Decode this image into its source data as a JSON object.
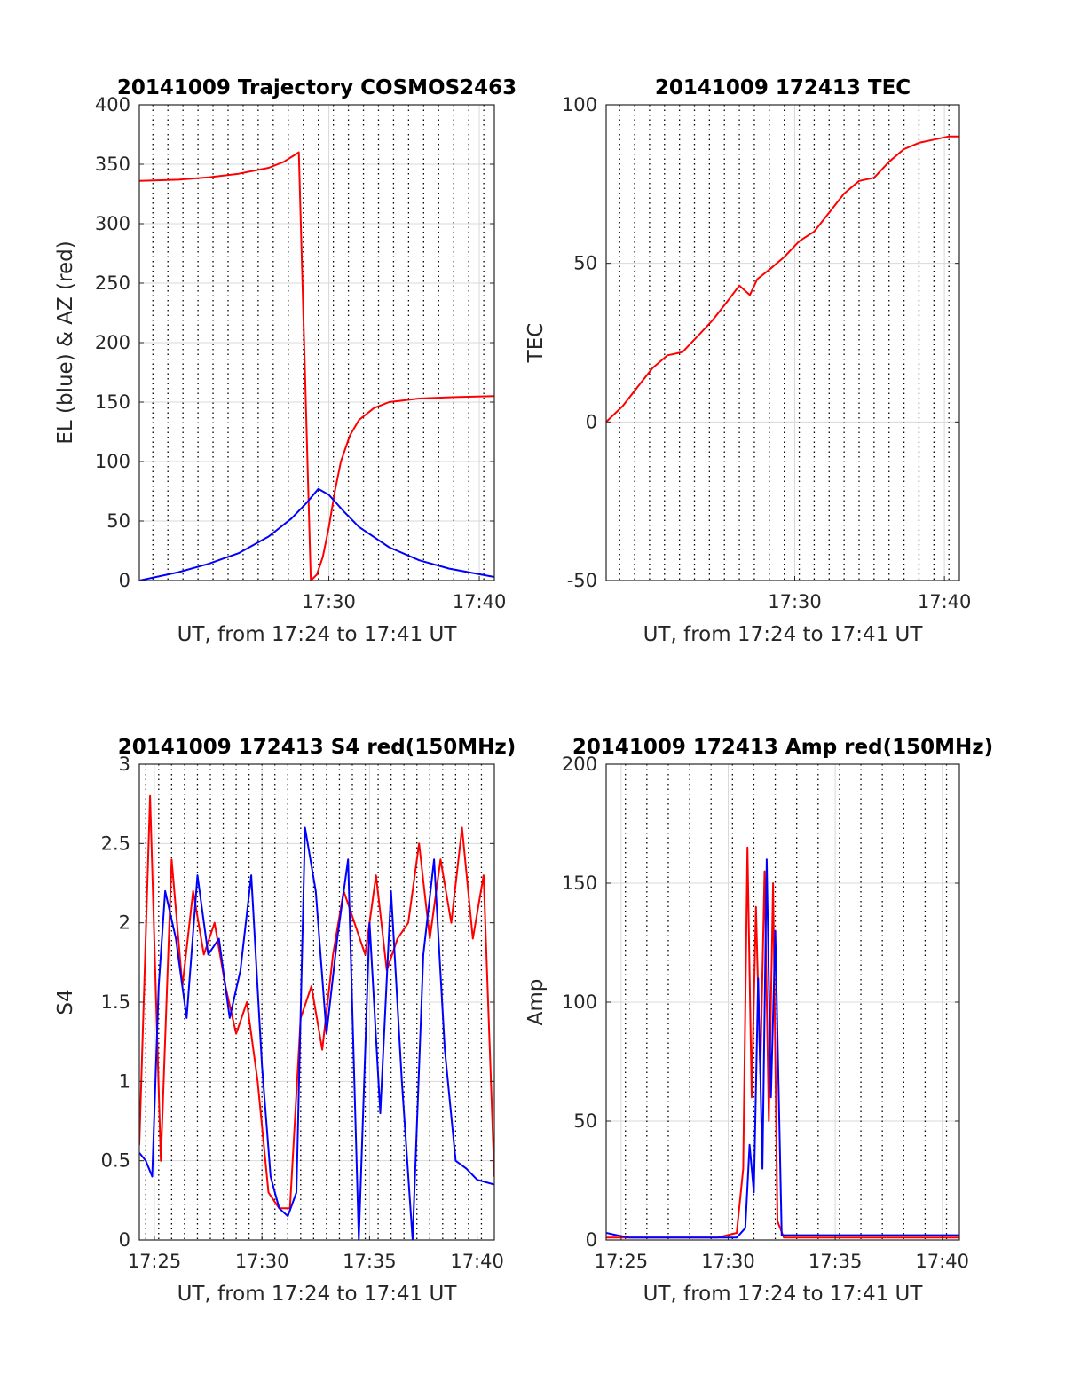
{
  "colors": {
    "el": "#0000ff",
    "az": "#ff0000",
    "grid": "#d9d9d9",
    "axis": "#262626"
  },
  "chart_data": [
    {
      "type": "line",
      "title": "20141009 Trajectory COSMOS2463",
      "xlabel": "UT, from 17:24 to 17:41 UT",
      "ylabel": "EL (blue) & AZ (red)",
      "xlim": [
        17.4,
        41.0
      ],
      "ylim": [
        0,
        400
      ],
      "xticks": [
        {
          "v": 30,
          "label": "17:30"
        },
        {
          "v": 40,
          "label": "17:40"
        }
      ],
      "yticks": [
        {
          "v": 0,
          "label": "0"
        },
        {
          "v": 50,
          "label": "50"
        },
        {
          "v": 100,
          "label": "100"
        },
        {
          "v": 150,
          "label": "150"
        },
        {
          "v": 200,
          "label": "200"
        },
        {
          "v": 250,
          "label": "250"
        },
        {
          "v": 300,
          "label": "300"
        },
        {
          "v": 350,
          "label": "350"
        },
        {
          "v": 400,
          "label": "400"
        }
      ],
      "vlines": [
        18.3,
        19.3,
        20.3,
        21.3,
        22.3,
        23.3,
        24.3,
        25.3,
        26.3,
        27.3,
        28.3,
        29.3,
        30.3,
        31.3,
        32.3,
        33.3,
        34.3,
        35.3,
        36.3,
        37.3,
        38.3,
        39.3,
        40.3
      ],
      "series": [
        {
          "color": "red",
          "x": [
            17.4,
            20,
            22,
            24,
            26,
            27,
            28,
            28.8,
            29.2,
            29.6,
            30.0,
            30.4,
            30.8,
            31.4,
            32.0,
            33.0,
            34.0,
            36.0,
            38.0,
            41.0
          ],
          "y": [
            336,
            337,
            339,
            342,
            347,
            352,
            360,
            0,
            5,
            20,
            45,
            75,
            100,
            122,
            135,
            145,
            150,
            153,
            154,
            155
          ]
        },
        {
          "color": "blue",
          "x": [
            17.4,
            20,
            22,
            24,
            26,
            27.5,
            28.5,
            29.3,
            30.0,
            31.0,
            32.0,
            34.0,
            36.0,
            38.0,
            41.0
          ],
          "y": [
            0,
            7,
            14,
            23,
            37,
            52,
            65,
            77,
            72,
            58,
            45,
            28,
            17,
            10,
            3
          ]
        }
      ]
    },
    {
      "type": "line",
      "title": "20141009 172413 TEC",
      "xlabel": "UT, from 17:24 to 17:41 UT",
      "ylabel": "TEC",
      "xlim": [
        17.4,
        41.0
      ],
      "ylim": [
        -50,
        100
      ],
      "xticks": [
        {
          "v": 30,
          "label": "17:30"
        },
        {
          "v": 40,
          "label": "17:40"
        }
      ],
      "yticks": [
        {
          "v": -50,
          "label": "-50"
        },
        {
          "v": 0,
          "label": "0"
        },
        {
          "v": 50,
          "label": "50"
        },
        {
          "v": 100,
          "label": "100"
        }
      ],
      "vlines": [
        18.3,
        19.3,
        20.3,
        21.3,
        22.3,
        23.3,
        24.3,
        25.3,
        26.3,
        27.3,
        28.3,
        29.3,
        30.3,
        31.3,
        32.3,
        33.3,
        34.3,
        35.3,
        36.3,
        37.3,
        38.3,
        39.3,
        40.3
      ],
      "series": [
        {
          "color": "red",
          "x": [
            17.4,
            18.5,
            19.5,
            20.5,
            21.5,
            22.5,
            23.5,
            24.5,
            25.5,
            26.3,
            27.0,
            27.5,
            28.3,
            29.3,
            30.3,
            31.3,
            32.3,
            33.3,
            34.3,
            35.3,
            36.3,
            37.3,
            38.3,
            39.3,
            40.3,
            41.0
          ],
          "y": [
            0,
            5,
            11,
            17,
            21,
            22,
            27,
            32,
            38,
            43,
            40,
            45,
            48,
            52,
            57,
            60,
            66,
            72,
            76,
            77,
            82,
            86,
            88,
            89,
            90,
            90
          ]
        }
      ]
    },
    {
      "type": "line",
      "title": "20141009 172413 S4 red(150MHz)",
      "xlabel": "UT, from 17:24 to 17:41 UT",
      "ylabel": "S4",
      "xlim": [
        24.3,
        40.8
      ],
      "ylim": [
        0,
        3
      ],
      "xticks": [
        {
          "v": 25,
          "label": "17:25"
        },
        {
          "v": 30,
          "label": "17:30"
        },
        {
          "v": 35,
          "label": "17:35"
        },
        {
          "v": 40,
          "label": "17:40"
        }
      ],
      "yticks": [
        {
          "v": 0,
          "label": "0"
        },
        {
          "v": 0.5,
          "label": "0.5"
        },
        {
          "v": 1,
          "label": "1"
        },
        {
          "v": 1.5,
          "label": "1.5"
        },
        {
          "v": 2,
          "label": "2"
        },
        {
          "v": 2.5,
          "label": "2.5"
        },
        {
          "v": 3,
          "label": "3"
        }
      ],
      "vlines": [
        24.6,
        25.2,
        25.8,
        26.4,
        27.0,
        27.6,
        28.2,
        28.8,
        29.4,
        30.0,
        30.6,
        31.2,
        31.8,
        32.4,
        33.0,
        33.6,
        34.2,
        34.8,
        35.4,
        36.0,
        36.6,
        37.2,
        37.8,
        38.4,
        39.0,
        39.6,
        40.2
      ],
      "series": [
        {
          "color": "red",
          "x": [
            24.3,
            24.8,
            25.3,
            25.8,
            26.3,
            26.8,
            27.3,
            27.8,
            28.3,
            28.8,
            29.3,
            29.8,
            30.3,
            30.8,
            31.3,
            31.8,
            32.3,
            32.8,
            33.3,
            33.8,
            34.3,
            34.8,
            35.3,
            35.8,
            36.3,
            36.8,
            37.3,
            37.8,
            38.3,
            38.8,
            39.3,
            39.8,
            40.3,
            40.8
          ],
          "y": [
            0.6,
            2.8,
            0.5,
            2.4,
            1.6,
            2.2,
            1.8,
            2.0,
            1.6,
            1.3,
            1.5,
            1.0,
            0.3,
            0.2,
            0.2,
            1.4,
            1.6,
            1.2,
            1.8,
            2.2,
            2.0,
            1.8,
            2.3,
            1.7,
            1.9,
            2.0,
            2.5,
            1.9,
            2.4,
            2.0,
            2.6,
            1.9,
            2.3,
            0.4
          ]
        },
        {
          "color": "blue",
          "x": [
            24.3,
            24.6,
            24.9,
            25.2,
            25.5,
            26.0,
            26.5,
            27.0,
            27.5,
            28.0,
            28.5,
            29.0,
            29.5,
            30.0,
            30.4,
            30.8,
            31.2,
            31.6,
            32.0,
            32.5,
            33.0,
            33.5,
            34.0,
            34.5,
            35.0,
            35.5,
            36.0,
            36.5,
            37.0,
            37.5,
            38.0,
            38.5,
            39.0,
            39.5,
            40.0,
            40.8
          ],
          "y": [
            0.55,
            0.5,
            0.4,
            1.6,
            2.2,
            1.9,
            1.4,
            2.3,
            1.8,
            1.9,
            1.4,
            1.7,
            2.3,
            1.1,
            0.4,
            0.2,
            0.15,
            0.3,
            2.6,
            2.2,
            1.3,
            1.9,
            2.4,
            0.0,
            2.0,
            0.8,
            2.2,
            1.0,
            0.0,
            1.8,
            2.4,
            1.2,
            0.5,
            0.45,
            0.38,
            0.35
          ]
        }
      ]
    },
    {
      "type": "line",
      "title": "20141009 172413 Amp red(150MHz)",
      "xlabel": "UT, from 17:24 to 17:41 UT",
      "ylabel": "Amp",
      "xlim": [
        24.3,
        40.8
      ],
      "ylim": [
        0,
        200
      ],
      "xticks": [
        {
          "v": 25,
          "label": "17:25"
        },
        {
          "v": 30,
          "label": "17:30"
        },
        {
          "v": 35,
          "label": "17:35"
        },
        {
          "v": 40,
          "label": "17:40"
        }
      ],
      "yticks": [
        {
          "v": 0,
          "label": "0"
        },
        {
          "v": 50,
          "label": "50"
        },
        {
          "v": 100,
          "label": "100"
        },
        {
          "v": 150,
          "label": "150"
        },
        {
          "v": 200,
          "label": "200"
        }
      ],
      "vlines": [
        25.2,
        26.2,
        27.2,
        28.2,
        29.2,
        30.2,
        31.2,
        32.2,
        33.2,
        34.2,
        35.2,
        36.2,
        37.2,
        38.2,
        39.2,
        40.2
      ],
      "series": [
        {
          "color": "red",
          "x": [
            24.3,
            29.5,
            30.4,
            30.7,
            30.9,
            31.1,
            31.3,
            31.5,
            31.7,
            31.9,
            32.1,
            32.3,
            32.6,
            40.8
          ],
          "y": [
            1,
            1,
            3,
            30,
            165,
            60,
            140,
            70,
            155,
            50,
            150,
            8,
            1,
            1
          ]
        },
        {
          "color": "blue",
          "x": [
            24.3,
            24.8,
            25.4,
            30.4,
            30.8,
            31.0,
            31.2,
            31.4,
            31.6,
            31.8,
            32.0,
            32.2,
            32.5,
            40.8
          ],
          "y": [
            3,
            2,
            1,
            1,
            5,
            40,
            20,
            110,
            30,
            160,
            60,
            130,
            2,
            2
          ]
        }
      ]
    }
  ]
}
